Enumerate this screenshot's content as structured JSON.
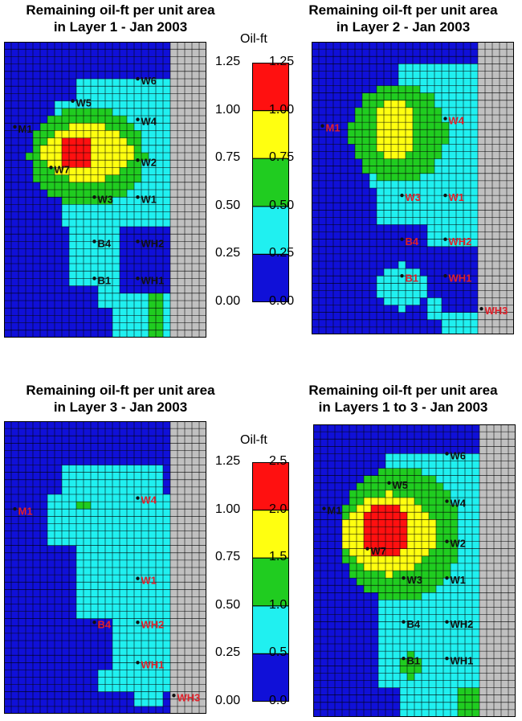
{
  "panels": [
    {
      "id": "layer1",
      "title": "Remaining oil-ft per unit area\nin Layer 1 - Jan 2003",
      "well_color": "#111111",
      "wells": [
        {
          "name": "W6"
        },
        {
          "name": "W5"
        },
        {
          "name": "W4"
        },
        {
          "name": "M1"
        },
        {
          "name": "W2"
        },
        {
          "name": "W7"
        },
        {
          "name": "W3"
        },
        {
          "name": "W1"
        },
        {
          "name": "B4"
        },
        {
          "name": "WH2"
        },
        {
          "name": "B1"
        },
        {
          "name": "WH1"
        }
      ]
    },
    {
      "id": "layer2",
      "title": "Remaining oil-ft per unit area\nin Layer 2 - Jan 2003",
      "well_color": "#e0202a",
      "wells": [
        {
          "name": "M1"
        },
        {
          "name": "W4"
        },
        {
          "name": "W3"
        },
        {
          "name": "W1"
        },
        {
          "name": "B4"
        },
        {
          "name": "WH2"
        },
        {
          "name": "B1"
        },
        {
          "name": "WH1"
        },
        {
          "name": "WH3"
        }
      ]
    },
    {
      "id": "layer3",
      "title": "Remaining oil-ft per unit area\nin Layer 3 - Jan 2003",
      "well_color": "#e0202a",
      "wells": [
        {
          "name": "M1"
        },
        {
          "name": "W4"
        },
        {
          "name": "W1"
        },
        {
          "name": "B4"
        },
        {
          "name": "WH2"
        },
        {
          "name": "WH1"
        },
        {
          "name": "WH3"
        }
      ]
    },
    {
      "id": "layers123",
      "title": "Remaining oil-ft per unit area\nin Layers 1 to 3 - Jan 2003",
      "well_color": "#111111",
      "wells": [
        {
          "name": "W6"
        },
        {
          "name": "W5"
        },
        {
          "name": "W4"
        },
        {
          "name": "M1"
        },
        {
          "name": "W2"
        },
        {
          "name": "W7"
        },
        {
          "name": "W3"
        },
        {
          "name": "W1"
        },
        {
          "name": "B4"
        },
        {
          "name": "WH2"
        },
        {
          "name": "B1"
        },
        {
          "name": "WH1"
        }
      ]
    }
  ],
  "colorbars": [
    {
      "title": "Oil-ft",
      "left_ticks": [
        "1.25",
        "1.00",
        "0.75",
        "0.50",
        "0.25",
        "0.00"
      ],
      "right_ticks": [
        "1.25",
        "1.00",
        "0.75",
        "0.50",
        "0.25",
        "0.00"
      ]
    },
    {
      "title": "Oil-ft",
      "left_ticks": [
        "1.25",
        "1.00",
        "0.75",
        "0.50",
        "0.25",
        "0.00"
      ],
      "right_ticks": [
        "2.5",
        "2.0",
        "1.5",
        "1.0",
        "0.5",
        "0.0"
      ]
    }
  ],
  "colors": {
    "level_0": "#1010d8",
    "level_1": "#20f0f0",
    "level_2": "#20cc20",
    "level_3": "#ffff10",
    "level_4": "#ff1010",
    "inactive": "#c0c0c0",
    "gridline": "#000000"
  },
  "chart_data": [
    {
      "type": "heatmap",
      "title": "Remaining oil-ft per unit area in Layer 1 - Jan 2003",
      "colorbar_label": "Oil-ft",
      "class_breaks": [
        0.0,
        0.25,
        0.5,
        0.75,
        1.0,
        1.25
      ],
      "max_value_color": "red",
      "wells": [
        "W6",
        "W5",
        "W4",
        "M1",
        "W2",
        "W7",
        "W3",
        "W1",
        "B4",
        "WH2",
        "B1",
        "WH1"
      ]
    },
    {
      "type": "heatmap",
      "title": "Remaining oil-ft per unit area in Layer 2 - Jan 2003",
      "colorbar_label": "Oil-ft",
      "class_breaks": [
        0.0,
        0.25,
        0.5,
        0.75,
        1.0,
        1.25
      ],
      "wells": [
        "M1",
        "W4",
        "W3",
        "W1",
        "B4",
        "WH2",
        "B1",
        "WH1",
        "WH3"
      ]
    },
    {
      "type": "heatmap",
      "title": "Remaining oil-ft per unit area in Layer 3 - Jan 2003",
      "colorbar_label": "Oil-ft",
      "class_breaks": [
        0.0,
        0.25,
        0.5,
        0.75,
        1.0,
        1.25
      ],
      "wells": [
        "M1",
        "W4",
        "W1",
        "B4",
        "WH2",
        "WH1",
        "WH3"
      ]
    },
    {
      "type": "heatmap",
      "title": "Remaining oil-ft per unit area in Layers 1 to 3 - Jan 2003",
      "colorbar_label": "Oil-ft",
      "class_breaks": [
        0.0,
        0.5,
        1.0,
        1.5,
        2.0,
        2.5
      ],
      "wells": [
        "W6",
        "W5",
        "W4",
        "M1",
        "W2",
        "W7",
        "W3",
        "W1",
        "B4",
        "WH2",
        "B1",
        "WH1"
      ]
    }
  ]
}
